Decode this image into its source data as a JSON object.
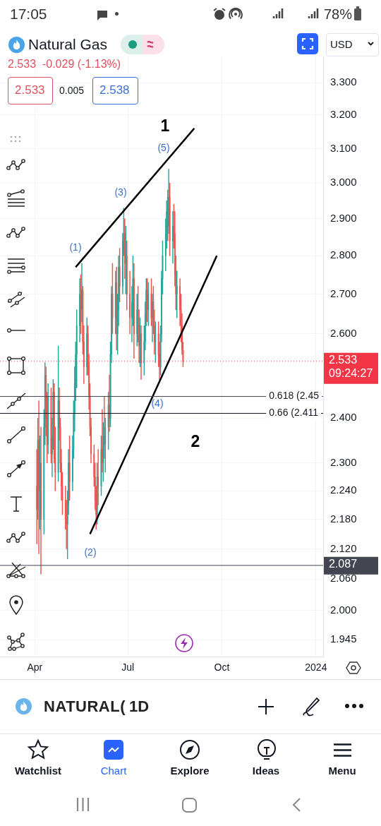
{
  "chart_data": {
    "type": "candlestick",
    "title": "Natural Gas",
    "x": [
      "2023-04-03",
      "2023-04-04",
      "2023-04-05",
      "2023-04-06",
      "2023-04-07",
      "2023-04-10",
      "2023-04-11",
      "2023-04-12",
      "2023-04-13",
      "2023-04-14",
      "2023-04-17",
      "2023-04-18",
      "2023-04-19",
      "2023-04-20",
      "2023-04-21",
      "2023-04-24",
      "2023-04-25",
      "2023-04-26",
      "2023-04-27",
      "2023-04-28",
      "2023-05-01",
      "2023-05-02",
      "2023-05-03",
      "2023-05-04",
      "2023-05-05",
      "2023-05-08",
      "2023-05-09",
      "2023-05-10",
      "2023-05-11",
      "2023-05-12",
      "2023-05-15",
      "2023-05-16",
      "2023-05-17",
      "2023-05-18",
      "2023-05-19",
      "2023-05-22",
      "2023-05-23",
      "2023-05-24",
      "2023-05-25",
      "2023-05-26",
      "2023-05-29",
      "2023-05-30",
      "2023-05-31",
      "2023-06-01",
      "2023-06-02",
      "2023-06-05",
      "2023-06-06",
      "2023-06-07",
      "2023-06-08",
      "2023-06-09",
      "2023-06-12",
      "2023-06-13",
      "2023-06-14",
      "2023-06-15",
      "2023-06-16",
      "2023-06-19",
      "2023-06-20",
      "2023-06-21",
      "2023-06-22",
      "2023-06-23",
      "2023-06-26",
      "2023-06-27",
      "2023-06-28",
      "2023-06-29",
      "2023-06-30",
      "2023-07-03",
      "2023-07-05",
      "2023-07-06",
      "2023-07-07",
      "2023-07-10",
      "2023-07-11",
      "2023-07-12",
      "2023-07-13",
      "2023-07-14",
      "2023-07-17",
      "2023-07-18",
      "2023-07-19",
      "2023-07-20",
      "2023-07-21",
      "2023-07-24",
      "2023-07-25",
      "2023-07-26",
      "2023-07-27",
      "2023-07-28",
      "2023-07-31",
      "2023-08-01",
      "2023-08-02",
      "2023-08-03",
      "2023-08-04",
      "2023-08-07",
      "2023-08-08",
      "2023-08-09",
      "2023-08-10",
      "2023-08-11",
      "2023-08-14",
      "2023-08-15",
      "2023-08-16",
      "2023-08-17",
      "2023-08-18",
      "2023-08-21",
      "2023-08-22",
      "2023-08-23",
      "2023-08-24"
    ],
    "ohlc": [
      [
        2.25,
        2.33,
        2.13,
        2.2
      ],
      [
        2.2,
        2.4,
        2.18,
        2.35
      ],
      [
        2.35,
        2.44,
        2.11,
        2.24
      ],
      [
        2.24,
        2.36,
        2.16,
        2.3
      ],
      [
        2.3,
        2.38,
        2.07,
        2.18
      ],
      [
        2.18,
        2.42,
        2.15,
        2.38
      ],
      [
        2.38,
        2.53,
        2.34,
        2.5
      ],
      [
        2.5,
        2.52,
        2.36,
        2.4
      ],
      [
        2.4,
        2.46,
        2.3,
        2.34
      ],
      [
        2.34,
        2.48,
        2.32,
        2.45
      ],
      [
        2.45,
        2.47,
        2.3,
        2.32
      ],
      [
        2.32,
        2.4,
        2.27,
        2.36
      ],
      [
        2.36,
        2.49,
        2.33,
        2.46
      ],
      [
        2.46,
        2.48,
        2.3,
        2.31
      ],
      [
        2.31,
        2.38,
        2.24,
        2.28
      ],
      [
        2.28,
        2.57,
        2.26,
        2.44
      ],
      [
        2.44,
        2.47,
        2.35,
        2.38
      ],
      [
        2.38,
        2.4,
        2.28,
        2.3
      ],
      [
        2.3,
        2.33,
        2.22,
        2.25
      ],
      [
        2.25,
        2.28,
        2.19,
        2.22
      ],
      [
        2.22,
        2.25,
        2.16,
        2.18
      ],
      [
        2.18,
        2.22,
        2.12,
        2.17
      ],
      [
        2.17,
        2.24,
        2.1,
        2.21
      ],
      [
        2.21,
        2.33,
        2.19,
        2.3
      ],
      [
        2.3,
        2.36,
        2.22,
        2.26
      ],
      [
        2.26,
        2.36,
        2.24,
        2.33
      ],
      [
        2.33,
        2.44,
        2.31,
        2.41
      ],
      [
        2.41,
        2.52,
        2.37,
        2.48
      ],
      [
        2.48,
        2.58,
        2.44,
        2.55
      ],
      [
        2.55,
        2.66,
        2.47,
        2.62
      ],
      [
        2.62,
        2.74,
        2.58,
        2.7
      ],
      [
        2.7,
        2.75,
        2.6,
        2.66
      ],
      [
        2.66,
        2.78,
        2.63,
        2.71
      ],
      [
        2.71,
        2.72,
        2.55,
        2.58
      ],
      [
        2.58,
        2.62,
        2.48,
        2.52
      ],
      [
        2.52,
        2.64,
        2.5,
        2.6
      ],
      [
        2.6,
        2.62,
        2.5,
        2.53
      ],
      [
        2.53,
        2.55,
        2.42,
        2.45
      ],
      [
        2.45,
        2.48,
        2.36,
        2.38
      ],
      [
        2.38,
        2.4,
        2.3,
        2.32
      ],
      [
        2.32,
        2.34,
        2.25,
        2.27
      ],
      [
        2.27,
        2.3,
        2.2,
        2.22
      ],
      [
        2.22,
        2.25,
        2.16,
        2.19
      ],
      [
        2.19,
        2.3,
        2.17,
        2.27
      ],
      [
        2.27,
        2.33,
        2.21,
        2.25
      ],
      [
        2.25,
        2.36,
        2.23,
        2.33
      ],
      [
        2.33,
        2.42,
        2.28,
        2.3
      ],
      [
        2.3,
        2.39,
        2.26,
        2.36
      ],
      [
        2.36,
        2.45,
        2.31,
        2.34
      ],
      [
        2.34,
        2.4,
        2.28,
        2.38
      ],
      [
        2.38,
        2.46,
        2.33,
        2.43
      ],
      [
        2.43,
        2.5,
        2.37,
        2.4
      ],
      [
        2.4,
        2.58,
        2.38,
        2.55
      ],
      [
        2.55,
        2.72,
        2.53,
        2.7
      ],
      [
        2.7,
        2.78,
        2.6,
        2.64
      ],
      [
        2.64,
        2.76,
        2.6,
        2.73
      ],
      [
        2.73,
        2.77,
        2.56,
        2.6
      ],
      [
        2.6,
        2.7,
        2.55,
        2.66
      ],
      [
        2.66,
        2.8,
        2.62,
        2.77
      ],
      [
        2.77,
        2.82,
        2.68,
        2.72
      ],
      [
        2.72,
        2.86,
        2.7,
        2.84
      ],
      [
        2.84,
        2.93,
        2.8,
        2.86
      ],
      [
        2.86,
        2.9,
        2.74,
        2.78
      ],
      [
        2.78,
        2.88,
        2.7,
        2.8
      ],
      [
        2.8,
        2.84,
        2.66,
        2.7
      ],
      [
        2.7,
        2.76,
        2.6,
        2.64
      ],
      [
        2.64,
        2.72,
        2.58,
        2.68
      ],
      [
        2.68,
        2.8,
        2.62,
        2.74
      ],
      [
        2.74,
        2.78,
        2.54,
        2.6
      ],
      [
        2.6,
        2.7,
        2.57,
        2.66
      ],
      [
        2.66,
        2.72,
        2.58,
        2.62
      ],
      [
        2.62,
        2.66,
        2.53,
        2.57
      ],
      [
        2.57,
        2.64,
        2.52,
        2.6
      ],
      [
        2.6,
        2.62,
        2.49,
        2.53
      ],
      [
        2.53,
        2.62,
        2.5,
        2.58
      ],
      [
        2.58,
        2.68,
        2.56,
        2.65
      ],
      [
        2.65,
        2.74,
        2.62,
        2.71
      ],
      [
        2.71,
        2.74,
        2.63,
        2.66
      ],
      [
        2.66,
        2.73,
        2.62,
        2.7
      ],
      [
        2.7,
        2.74,
        2.62,
        2.64
      ],
      [
        2.64,
        2.7,
        2.58,
        2.68
      ],
      [
        2.68,
        2.72,
        2.6,
        2.62
      ],
      [
        2.62,
        2.66,
        2.55,
        2.58
      ],
      [
        2.58,
        2.63,
        2.53,
        2.6
      ],
      [
        2.6,
        2.63,
        2.52,
        2.55
      ],
      [
        2.55,
        2.58,
        2.49,
        2.52
      ],
      [
        2.52,
        2.62,
        2.5,
        2.6
      ],
      [
        2.6,
        2.76,
        2.58,
        2.74
      ],
      [
        2.74,
        2.84,
        2.7,
        2.8
      ],
      [
        2.8,
        2.9,
        2.76,
        2.86
      ],
      [
        2.86,
        2.95,
        2.82,
        2.92
      ],
      [
        2.92,
        2.98,
        2.84,
        2.88
      ],
      [
        2.88,
        3.04,
        2.86,
        2.96
      ],
      [
        2.96,
        3.0,
        2.8,
        2.84
      ],
      [
        2.84,
        2.92,
        2.78,
        2.88
      ],
      [
        2.88,
        2.94,
        2.82,
        2.86
      ],
      [
        2.86,
        2.92,
        2.72,
        2.75
      ],
      [
        2.75,
        2.8,
        2.66,
        2.7
      ],
      [
        2.7,
        2.76,
        2.64,
        2.72
      ],
      [
        2.72,
        2.74,
        2.62,
        2.66
      ],
      [
        2.66,
        2.7,
        2.58,
        2.62
      ],
      [
        2.62,
        2.65,
        2.55,
        2.562
      ],
      [
        2.56,
        2.58,
        2.52,
        2.533
      ]
    ],
    "colors": [
      "#ef5350",
      "#26a69a",
      "#ef5350",
      "#26a69a",
      "#ef5350",
      "#26a69a",
      "#26a69a",
      "#ef5350",
      "#ef5350",
      "#26a69a",
      "#ef5350",
      "#26a69a",
      "#26a69a",
      "#ef5350",
      "#ef5350",
      "#26a69a",
      "#ef5350",
      "#ef5350",
      "#ef5350",
      "#ef5350",
      "#ef5350",
      "#ef5350",
      "#26a69a",
      "#26a69a",
      "#ef5350",
      "#26a69a",
      "#26a69a",
      "#26a69a",
      "#26a69a",
      "#26a69a",
      "#26a69a",
      "#ef5350",
      "#26a69a",
      "#ef5350",
      "#ef5350",
      "#26a69a",
      "#ef5350",
      "#ef5350",
      "#ef5350",
      "#ef5350",
      "#ef5350",
      "#ef5350",
      "#ef5350",
      "#26a69a",
      "#ef5350",
      "#26a69a",
      "#ef5350",
      "#26a69a",
      "#ef5350",
      "#26a69a",
      "#26a69a",
      "#ef5350",
      "#26a69a",
      "#26a69a",
      "#ef5350",
      "#26a69a",
      "#ef5350",
      "#26a69a",
      "#26a69a",
      "#ef5350",
      "#26a69a",
      "#26a69a",
      "#ef5350",
      "#26a69a",
      "#ef5350",
      "#ef5350",
      "#26a69a",
      "#26a69a",
      "#ef5350",
      "#26a69a",
      "#ef5350",
      "#ef5350",
      "#26a69a",
      "#ef5350",
      "#26a69a",
      "#26a69a",
      "#26a69a",
      "#ef5350",
      "#26a69a",
      "#ef5350",
      "#26a69a",
      "#ef5350",
      "#ef5350",
      "#26a69a",
      "#ef5350",
      "#ef5350",
      "#26a69a",
      "#26a69a",
      "#26a69a",
      "#26a69a",
      "#26a69a",
      "#ef5350",
      "#26a69a",
      "#ef5350",
      "#26a69a",
      "#ef5350",
      "#ef5350",
      "#ef5350",
      "#26a69a",
      "#ef5350",
      "#ef5350",
      "#ef5350",
      "#ef5350"
    ],
    "series": [
      {
        "type": "line",
        "color": "#000000",
        "x": [
          "2023-05-11",
          "2023-09-04"
        ],
        "values": [
          2.77,
          3.16
        ]
      },
      {
        "type": "line",
        "color": "#000000",
        "x": [
          "2023-05-25",
          "2023-09-26"
        ],
        "values": [
          2.15,
          2.8
        ]
      }
    ],
    "xlim": [
      "2023-02-26",
      "2024-01-08"
    ],
    "xticks": [
      {
        "value": "2023-04-01",
        "label": "Apr"
      },
      {
        "value": "2023-07-01",
        "label": "Jul"
      },
      {
        "value": "2023-10-01",
        "label": "Oct"
      },
      {
        "value": "2024-01-01",
        "label": "2024"
      }
    ],
    "ylim": [
      1.914,
      3.383
    ],
    "yticks": [
      {
        "value": 1.945,
        "label": "1.945"
      },
      {
        "value": 2,
        "label": "2.000"
      },
      {
        "value": 2.06,
        "label": "2.060"
      },
      {
        "value": 2.12,
        "label": "2.120"
      },
      {
        "value": 2.18,
        "label": "2.180"
      },
      {
        "value": 2.24,
        "label": "2.240"
      },
      {
        "value": 2.3,
        "label": "2.300"
      },
      {
        "value": 2.4,
        "label": "2.400"
      },
      {
        "value": 2.6,
        "label": "2.600"
      },
      {
        "value": 2.7,
        "label": "2.700"
      },
      {
        "value": 2.8,
        "label": "2.800"
      },
      {
        "value": 2.9,
        "label": "2.900"
      },
      {
        "value": 3,
        "label": "3.000"
      },
      {
        "value": 3.1,
        "label": "3.100"
      },
      {
        "value": 3.2,
        "label": "3.200"
      },
      {
        "value": 3.3,
        "label": "3.300"
      }
    ],
    "log": true,
    "grid": true,
    "ref_lines": [
      {
        "axis": "y",
        "value": 2.533,
        "label": "2.533 09:24:27",
        "color": "#f23645",
        "line_style": "dotted"
      },
      {
        "axis": "y",
        "value": 2.087,
        "label": "2.087",
        "color": "#434651"
      },
      {
        "axis": "y",
        "value": 2.45,
        "color": "#434651"
      },
      {
        "axis": "y",
        "value": 2.411,
        "color": "#131722"
      }
    ],
    "annotations": [
      "2.533  -0.029 (-1.13%)",
      "2.533",
      "0.005",
      "2.538",
      "USD",
      "17:05",
      "78%",
      "NATURAL(",
      "1D",
      "Watchlist",
      "Chart",
      "Explore",
      "Ideas",
      "Menu",
      "1",
      "2",
      "(1)",
      "(2)",
      "(3)",
      "(4)",
      "(5)",
      {
        "text": "0.618 (2.45",
        "x": "2023-11-16",
        "y": 2.45
      },
      {
        "text": "0.66 (2.411",
        "x": "2023-11-16",
        "y": 2.411
      }
    ]
  }
}
